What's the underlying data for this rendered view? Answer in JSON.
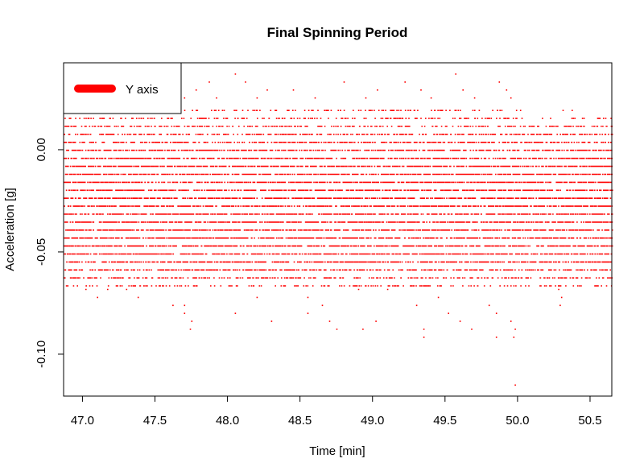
{
  "chart_data": {
    "type": "scatter",
    "title": "Final Spinning Period",
    "xlabel": "Time [min]",
    "ylabel": "Acceleration [g]",
    "xlim": [
      46.87,
      50.65
    ],
    "ylim": [
      -0.1205,
      0.0425
    ],
    "x_ticks": [
      47.0,
      47.5,
      48.0,
      48.5,
      49.0,
      49.5,
      50.0,
      50.5
    ],
    "x_tick_labels": [
      "47.0",
      "47.5",
      "48.0",
      "48.5",
      "49.0",
      "49.5",
      "50.0",
      "50.5"
    ],
    "y_ticks": [
      -0.1,
      -0.05,
      0.0
    ],
    "y_tick_labels": [
      "-0.10",
      "-0.05",
      "0.00"
    ],
    "grid": false,
    "legend": {
      "position": "top-left",
      "entries": [
        {
          "label": "Y axis",
          "color": "#ff0000"
        }
      ]
    },
    "series": [
      {
        "name": "Y axis",
        "color": "#ff0000",
        "quantization_step_g": 0.0039,
        "dense_band": [
          -0.05,
          -0.008
        ],
        "sparse_levels": [
          {
            "y": 0.0373,
            "x": [
              48.05,
              49.57
            ]
          },
          {
            "y": 0.0334,
            "x": [
              47.87,
              48.12,
              48.8,
              49.22,
              49.87
            ]
          },
          {
            "y": 0.0295,
            "x": [
              47.78,
              48.27,
              48.45,
              49.03,
              49.33,
              49.62,
              49.92
            ]
          },
          {
            "y": 0.0256,
            "x": [
              47.7,
              47.92,
              48.2,
              48.6,
              48.95,
              49.4,
              49.7,
              49.95
            ]
          },
          {
            "y": -0.068,
            "x": [
              47.02,
              47.17,
              47.3,
              48.9,
              49.1,
              50.28
            ]
          },
          {
            "y": -0.0719,
            "x": [
              47.1,
              47.38,
              48.2,
              48.55,
              49.45,
              50.3
            ]
          },
          {
            "y": -0.0758,
            "x": [
              47.62,
              47.7,
              48.65,
              49.3,
              49.8,
              50.29
            ]
          },
          {
            "y": -0.0797,
            "x": [
              47.7,
              48.05,
              48.55,
              49.52,
              49.85
            ]
          },
          {
            "y": -0.0836,
            "x": [
              47.75,
              48.3,
              48.7,
              49.02,
              49.6,
              49.95
            ]
          },
          {
            "y": -0.0875,
            "x": [
              47.74,
              48.75,
              48.93,
              49.35,
              49.68,
              49.98
            ]
          },
          {
            "y": -0.0914,
            "x": [
              49.35,
              49.85,
              49.97
            ]
          },
          {
            "y": -0.1148,
            "x": [
              49.98
            ]
          }
        ]
      }
    ]
  }
}
